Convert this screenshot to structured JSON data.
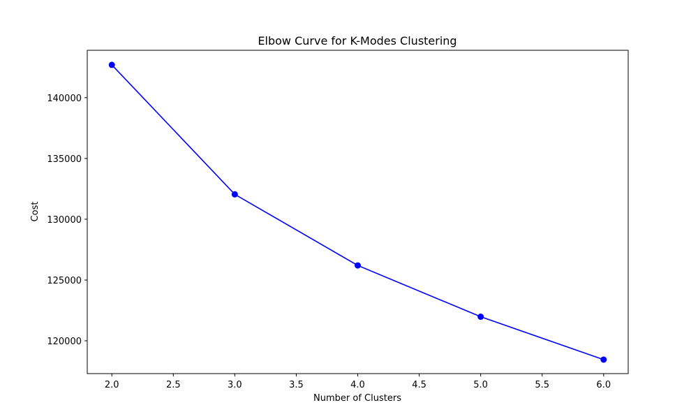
{
  "chart_data": {
    "type": "line",
    "title": "Elbow Curve for K-Modes Clustering",
    "xlabel": "Number of Clusters",
    "ylabel": "Cost",
    "x": [
      2,
      3,
      4,
      5,
      6
    ],
    "series": [
      {
        "values": [
          142700,
          132050,
          126200,
          121980,
          118450
        ],
        "color": "#0000ff",
        "marker": "circle"
      }
    ],
    "xlim": [
      1.8,
      6.2
    ],
    "ylim": [
      117300,
      143900
    ],
    "xticks": [
      2.0,
      2.5,
      3.0,
      3.5,
      4.0,
      4.5,
      5.0,
      5.5,
      6.0
    ],
    "xtick_labels": [
      "2.0",
      "2.5",
      "3.0",
      "3.5",
      "4.0",
      "4.5",
      "5.0",
      "5.5",
      "6.0"
    ],
    "yticks": [
      120000,
      125000,
      130000,
      135000,
      140000
    ],
    "ytick_labels": [
      "120000",
      "125000",
      "130000",
      "135000",
      "140000"
    ],
    "grid": false
  }
}
